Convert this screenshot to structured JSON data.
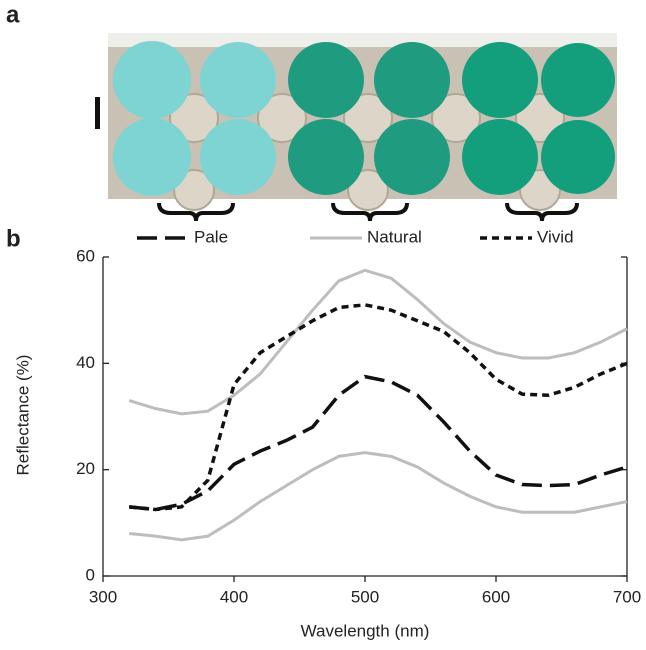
{
  "panel_labels": [
    "a",
    "b"
  ],
  "chart_data": {
    "type": "line",
    "x_label": "Wavelength (nm)",
    "y_label": "Reflectance (%)",
    "x": [
      320,
      340,
      360,
      380,
      400,
      420,
      440,
      460,
      480,
      500,
      520,
      540,
      560,
      580,
      600,
      620,
      640,
      660,
      680,
      700
    ],
    "series": [
      {
        "name": "Pale",
        "color": "#111111",
        "dash": "long",
        "values": [
          13,
          12.5,
          13.5,
          16,
          21,
          23.5,
          25.5,
          28,
          34,
          37.5,
          36.5,
          34,
          29,
          23.5,
          19,
          17.2,
          17,
          17.2,
          19,
          20.5
        ]
      },
      {
        "name": "Natural",
        "color": "#bdbdbd",
        "dash": "solid",
        "values": [
          33,
          31.5,
          30.5,
          31,
          34,
          38,
          44,
          50,
          55.5,
          57.5,
          56,
          52,
          47.5,
          44,
          42,
          41,
          41,
          42,
          44,
          46.5
        ],
        "lower": [
          8,
          7.5,
          6.8,
          7.5,
          10.5,
          14,
          17,
          20,
          22.5,
          23.2,
          22.5,
          20.5,
          17.5,
          15,
          13,
          12,
          12,
          12,
          13,
          14
        ]
      },
      {
        "name": "Vivid",
        "color": "#111111",
        "dash": "short",
        "values": [
          13,
          12.5,
          13,
          18,
          36,
          42,
          45,
          48,
          50.5,
          51,
          50,
          48,
          46,
          42,
          37,
          34.2,
          34,
          35.5,
          38,
          40
        ]
      }
    ],
    "xlim": [
      300,
      700
    ],
    "xticks": [
      300,
      400,
      500,
      600,
      700
    ],
    "ylim": [
      0,
      60
    ],
    "yticks": [
      0,
      20,
      40,
      60
    ]
  }
}
